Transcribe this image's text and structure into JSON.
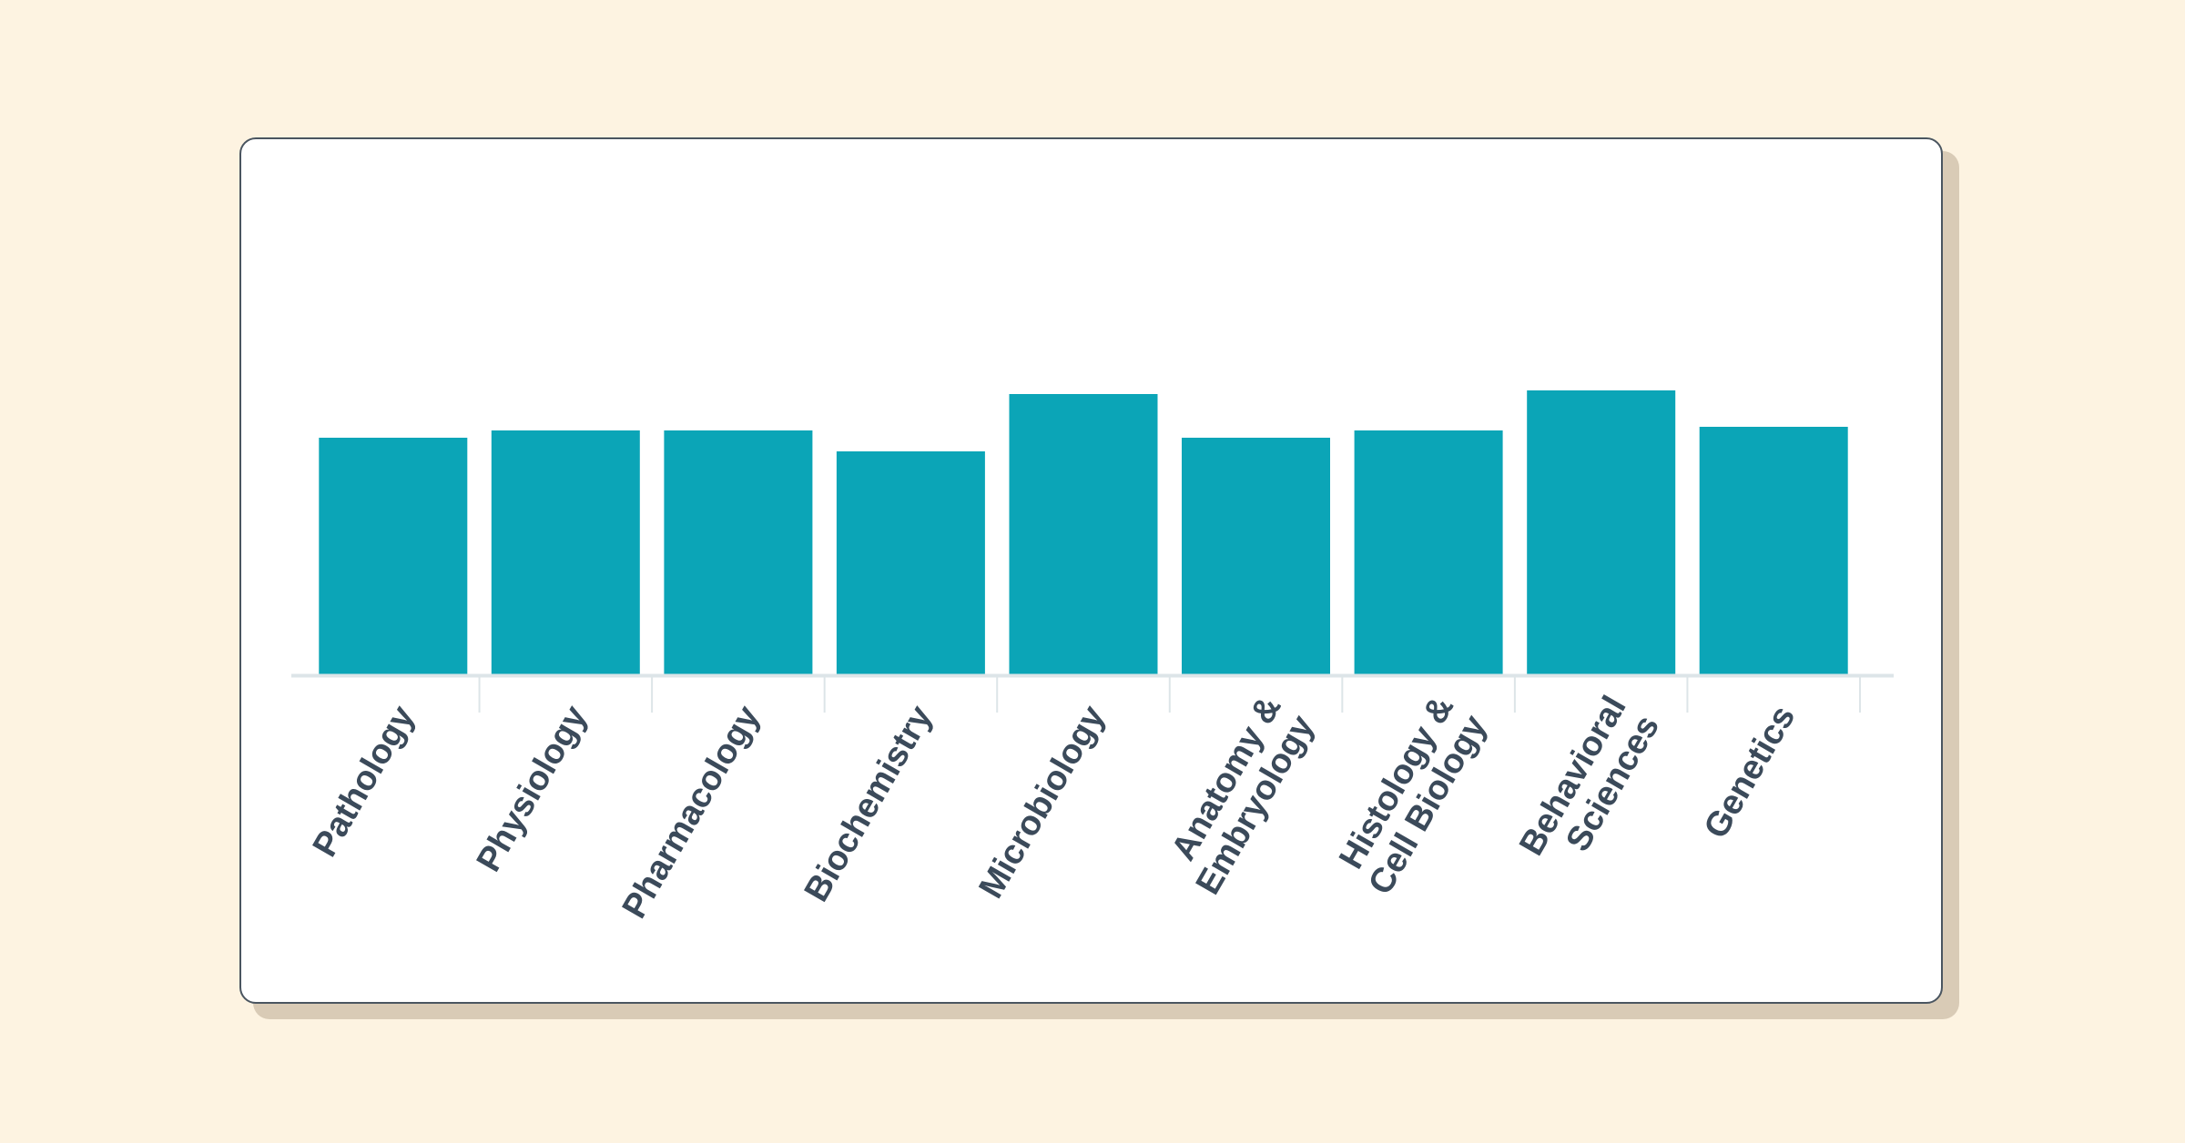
{
  "chart_data": {
    "type": "bar",
    "categories": [
      [
        "Pathology"
      ],
      [
        "Physiology"
      ],
      [
        "Pharmacology"
      ],
      [
        "Biochemistry"
      ],
      [
        "Microbiology"
      ],
      [
        "Anatomy &",
        "Embryology"
      ],
      [
        "Histology &",
        "Cell Biology"
      ],
      [
        "Behavioral",
        "Sciences"
      ],
      [
        "Genetics"
      ]
    ],
    "values": [
      260,
      268,
      268,
      245,
      308,
      260,
      268,
      312,
      272
    ],
    "ylim": [
      0,
      560
    ],
    "grid": false,
    "bar_color": "#0ba5b7",
    "axis_color": "#dde5e8",
    "label_color": "#3b4a5a"
  }
}
